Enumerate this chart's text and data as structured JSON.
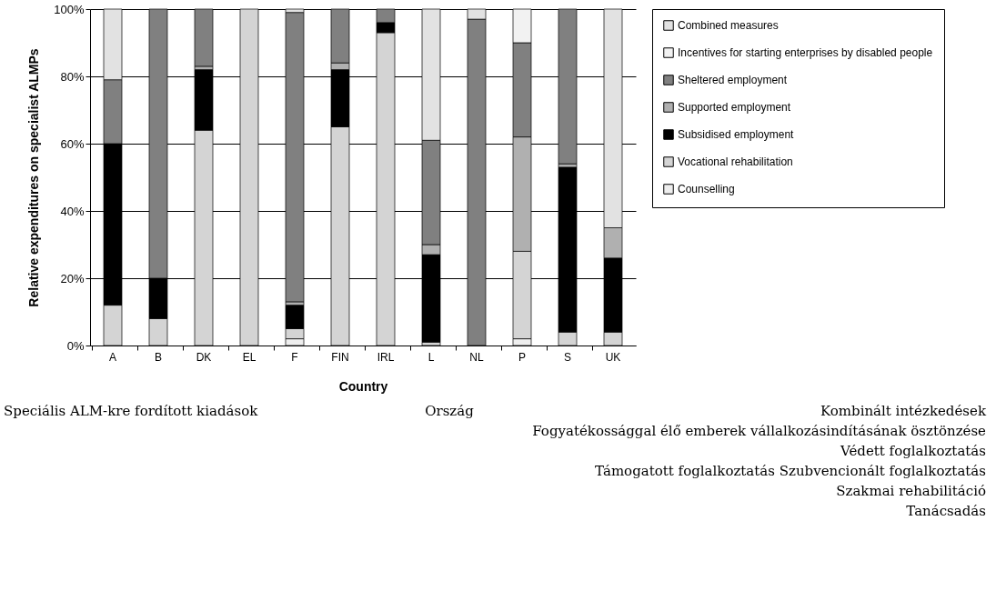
{
  "chart_data": {
    "type": "bar",
    "stacked": true,
    "xlabel": "Country",
    "ylabel": "Relative expenditures on specialist ALMPs",
    "categories": [
      "A",
      "B",
      "DK",
      "EL",
      "F",
      "FIN",
      "IRL",
      "L",
      "NL",
      "P",
      "S",
      "UK"
    ],
    "series": [
      {
        "name": "Counselling",
        "color": "#eeeeee",
        "values": [
          0,
          0,
          0,
          0,
          2,
          0,
          0,
          0,
          0,
          2,
          0,
          0
        ]
      },
      {
        "name": "Vocational rehabilitation",
        "color": "#d4d4d4",
        "values": [
          12,
          8,
          64,
          100,
          3,
          65,
          93,
          1,
          0,
          26,
          4,
          4
        ]
      },
      {
        "name": "Subsidised employment",
        "color": "#000000",
        "values": [
          48,
          12,
          18,
          0,
          7,
          17,
          3,
          26,
          0,
          0,
          49,
          22
        ]
      },
      {
        "name": "Supported employment",
        "color": "#b0b0b0",
        "values": [
          0,
          0,
          1,
          0,
          1,
          2,
          0,
          3,
          0,
          34,
          1,
          9
        ]
      },
      {
        "name": "Sheltered employment",
        "color": "#808080",
        "values": [
          19,
          80,
          17,
          0,
          86,
          16,
          4,
          31,
          97,
          28,
          46,
          0
        ]
      },
      {
        "name": "Incentives for starting enterprises by disabled people",
        "color": "#f2f2f2",
        "values": [
          0,
          0,
          0,
          0,
          0,
          0,
          0,
          0,
          0,
          10,
          0,
          0
        ]
      },
      {
        "name": "Combined measures",
        "color": "#e2e2e2",
        "values": [
          21,
          0,
          0,
          0,
          1,
          0,
          0,
          39,
          3,
          0,
          0,
          65
        ]
      }
    ],
    "ylim": [
      0,
      100
    ],
    "yticks": [
      {
        "value": 0,
        "label": "0%"
      },
      {
        "value": 20,
        "label": "20%"
      },
      {
        "value": 40,
        "label": "40%"
      },
      {
        "value": 60,
        "label": "60%"
      },
      {
        "value": 80,
        "label": "80%"
      },
      {
        "value": 100,
        "label": "100%"
      }
    ],
    "grid": "y",
    "legend": "right",
    "annotations": [
      "Speciális ALM-kre fordított kiadások",
      "Ország",
      "Kombinált intézkedések",
      "Fogyatékossággal élő emberek vállalkozásindításának ösztönzése",
      "Védett foglalkoztatás",
      "Támogatott foglalkoztatás Szubvencionált foglalkoztatás",
      "Szakmai rehabilitáció",
      "Tanácsadás"
    ]
  }
}
